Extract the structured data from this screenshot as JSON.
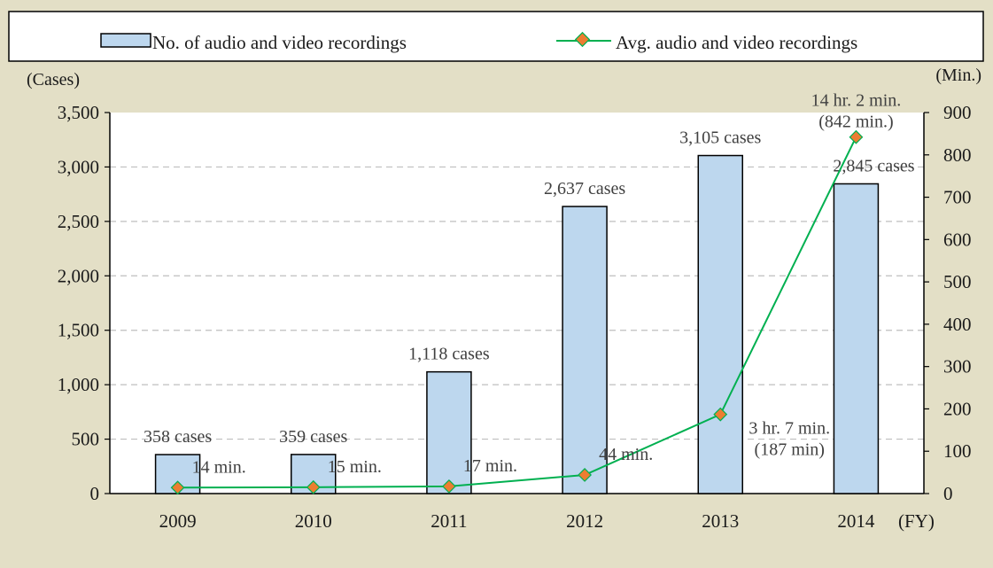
{
  "chart_data": {
    "type": "bar+line",
    "categories": [
      "2009",
      "2010",
      "2011",
      "2012",
      "2013",
      "2014"
    ],
    "series": [
      {
        "name": "No. of audio and video recordings",
        "type": "bar",
        "axis": "left",
        "values": [
          358,
          359,
          1118,
          2637,
          3105,
          2845
        ],
        "labels": [
          "358 cases",
          "359 cases",
          "1,118 cases",
          "2,637 cases",
          "3,105 cases",
          "2,845 cases"
        ],
        "color": "#bdd7ee"
      },
      {
        "name": "Avg. audio and video recordings",
        "type": "line",
        "axis": "right",
        "values": [
          14,
          15,
          17,
          44,
          187,
          842
        ],
        "labels": [
          [
            "14 min."
          ],
          [
            "15 min."
          ],
          [
            "17 min."
          ],
          [
            "44 min."
          ],
          [
            "3 hr. 7 min.",
            "(187 min)"
          ],
          [
            "14 hr. 2 min.",
            "(842 min.)"
          ]
        ],
        "color": "#00b050",
        "marker_color": "#ed7d31"
      }
    ],
    "left_axis": {
      "unit": "(Cases)",
      "ylim": [
        0,
        3500
      ],
      "ticks": [
        0,
        500,
        1000,
        1500,
        2000,
        2500,
        3000,
        3500
      ],
      "tick_labels": [
        "0",
        "500",
        "1,000",
        "1,500",
        "2,000",
        "2,500",
        "3,000",
        "3,500"
      ]
    },
    "right_axis": {
      "unit": "(Min.)",
      "ylim": [
        0,
        900
      ],
      "ticks": [
        0,
        100,
        200,
        300,
        400,
        500,
        600,
        700,
        800,
        900
      ],
      "tick_labels": [
        "0",
        "100",
        "200",
        "300",
        "400",
        "500",
        "600",
        "700",
        "800",
        "900"
      ]
    },
    "x_axis": {
      "unit": "(FY)"
    },
    "grid": true,
    "legend_position": "top"
  }
}
